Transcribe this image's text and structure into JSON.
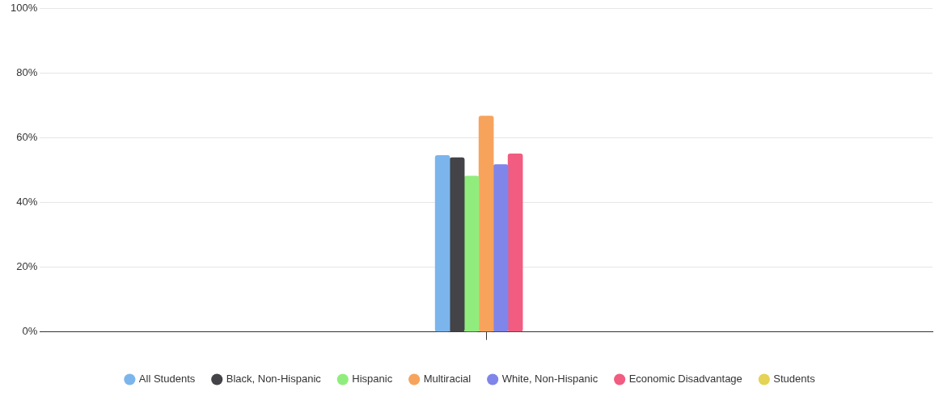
{
  "chart_data": {
    "type": "bar",
    "categories": [
      null
    ],
    "series": [
      {
        "name": "All Students",
        "color": "#7cb5ec",
        "values": [
          54.6
        ]
      },
      {
        "name": "Black, Non-Hispanic",
        "color": "#434348",
        "values": [
          53.9
        ]
      },
      {
        "name": "Hispanic",
        "color": "#90ed7d",
        "values": [
          48.2
        ]
      },
      {
        "name": "Multiracial",
        "color": "#f7a35c",
        "values": [
          66.8
        ]
      },
      {
        "name": "White, Non-Hispanic",
        "color": "#8085e9",
        "values": [
          51.8
        ]
      },
      {
        "name": "Economic Disadvantage",
        "color": "#f15c80",
        "values": [
          55.1
        ]
      },
      {
        "name": "Students",
        "color": "#e4d354",
        "values": [
          null
        ]
      }
    ],
    "ylim": [
      0,
      100
    ],
    "yticks": [
      {
        "value": 0,
        "label": "0%"
      },
      {
        "value": 20,
        "label": "20%"
      },
      {
        "value": 40,
        "label": "40%"
      },
      {
        "value": 60,
        "label": "60%"
      },
      {
        "value": 80,
        "label": "80%"
      },
      {
        "value": 100,
        "label": "100%"
      }
    ],
    "grid": "y",
    "legend": "bottom"
  }
}
